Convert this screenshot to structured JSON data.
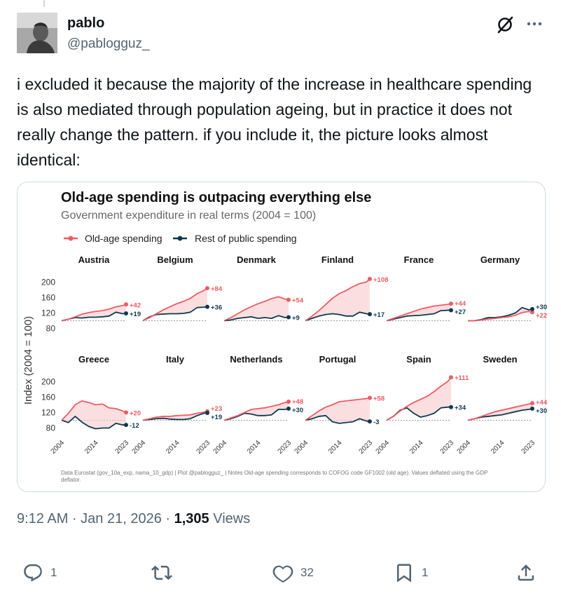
{
  "post": {
    "author_name": "pablo",
    "author_handle": "@pablogguz_",
    "text": "i excluded it because the majority of the increase in healthcare spending is also mediated through population ageing, but in practice it does not really change the pattern. if you include it, the picture looks almost identical:",
    "time": "9:12 AM",
    "date": "Jan 21, 2026",
    "views_count": "1,305",
    "views_label": "Views"
  },
  "actions": {
    "replies": "1",
    "reposts": "",
    "likes": "32",
    "bookmarks": "1"
  },
  "icons": [
    "reply-icon",
    "repost-icon",
    "like-icon",
    "bookmark-icon",
    "share-icon",
    "grok-icon",
    "more-icon"
  ],
  "chart_data": {
    "type": "line",
    "title": "Old-age spending is outpacing everything else",
    "subtitle": "Government expenditure in real terms (2004 = 100)",
    "legend": [
      {
        "name": "Old-age spending",
        "color": "#f05a63"
      },
      {
        "name": "Rest of public spending",
        "color": "#0e3a4f"
      }
    ],
    "ylabel": "Index (2004 = 100)",
    "yticks": [
      80,
      120,
      160,
      200
    ],
    "ylim": [
      70,
      215
    ],
    "x_ticks": [
      "2004",
      "2014",
      "2023"
    ],
    "xlim": [
      2004,
      2023
    ],
    "note": "Data Eurostat (gov_10a_exp, nama_10_gdp) | Plot @pablogguz_ | Notes Old-age spending corresponds to COFOG code GF1002 (old age). Values deflated using the GDP deflator.",
    "panels": [
      {
        "country": "Austria",
        "old_label": "+42",
        "rest_label": "+19",
        "old": [
          [
            2004,
            100
          ],
          [
            2006,
            104
          ],
          [
            2008,
            110
          ],
          [
            2010,
            117
          ],
          [
            2012,
            121
          ],
          [
            2014,
            124
          ],
          [
            2016,
            126
          ],
          [
            2018,
            130
          ],
          [
            2020,
            136
          ],
          [
            2022,
            139
          ],
          [
            2023,
            142
          ]
        ],
        "rest": [
          [
            2004,
            100
          ],
          [
            2006,
            104
          ],
          [
            2008,
            108
          ],
          [
            2010,
            107
          ],
          [
            2012,
            109
          ],
          [
            2014,
            109
          ],
          [
            2016,
            110
          ],
          [
            2018,
            112
          ],
          [
            2020,
            122
          ],
          [
            2022,
            118
          ],
          [
            2023,
            119
          ]
        ]
      },
      {
        "country": "Belgium",
        "old_label": "+84",
        "rest_label": "+36",
        "old": [
          [
            2004,
            100
          ],
          [
            2006,
            108
          ],
          [
            2008,
            118
          ],
          [
            2010,
            128
          ],
          [
            2012,
            136
          ],
          [
            2014,
            144
          ],
          [
            2016,
            150
          ],
          [
            2018,
            158
          ],
          [
            2020,
            170
          ],
          [
            2022,
            178
          ],
          [
            2023,
            184
          ]
        ],
        "rest": [
          [
            2004,
            100
          ],
          [
            2006,
            110
          ],
          [
            2008,
            116
          ],
          [
            2010,
            117
          ],
          [
            2012,
            118
          ],
          [
            2014,
            118
          ],
          [
            2016,
            119
          ],
          [
            2018,
            122
          ],
          [
            2020,
            134
          ],
          [
            2022,
            135
          ],
          [
            2023,
            136
          ]
        ]
      },
      {
        "country": "Denmark",
        "old_label": "+54",
        "rest_label": "+9",
        "old": [
          [
            2004,
            100
          ],
          [
            2006,
            108
          ],
          [
            2008,
            118
          ],
          [
            2010,
            128
          ],
          [
            2012,
            136
          ],
          [
            2014,
            144
          ],
          [
            2016,
            150
          ],
          [
            2018,
            157
          ],
          [
            2020,
            162
          ],
          [
            2022,
            156
          ],
          [
            2023,
            154
          ]
        ],
        "rest": [
          [
            2004,
            100
          ],
          [
            2006,
            102
          ],
          [
            2008,
            106
          ],
          [
            2010,
            108
          ],
          [
            2012,
            110
          ],
          [
            2014,
            106
          ],
          [
            2016,
            108
          ],
          [
            2018,
            106
          ],
          [
            2020,
            113
          ],
          [
            2022,
            108
          ],
          [
            2023,
            109
          ]
        ]
      },
      {
        "country": "Finland",
        "old_label": "+108",
        "rest_label": "+17",
        "old": [
          [
            2004,
            100
          ],
          [
            2006,
            112
          ],
          [
            2008,
            126
          ],
          [
            2010,
            142
          ],
          [
            2012,
            158
          ],
          [
            2014,
            170
          ],
          [
            2016,
            178
          ],
          [
            2018,
            188
          ],
          [
            2020,
            196
          ],
          [
            2022,
            200
          ],
          [
            2023,
            208
          ]
        ],
        "rest": [
          [
            2004,
            100
          ],
          [
            2006,
            106
          ],
          [
            2008,
            112
          ],
          [
            2010,
            116
          ],
          [
            2012,
            118
          ],
          [
            2014,
            116
          ],
          [
            2016,
            112
          ],
          [
            2018,
            112
          ],
          [
            2020,
            122
          ],
          [
            2022,
            118
          ],
          [
            2023,
            117
          ]
        ]
      },
      {
        "country": "France",
        "old_label": "+44",
        "rest_label": "+27",
        "old": [
          [
            2004,
            100
          ],
          [
            2006,
            106
          ],
          [
            2008,
            112
          ],
          [
            2010,
            118
          ],
          [
            2012,
            124
          ],
          [
            2014,
            130
          ],
          [
            2016,
            134
          ],
          [
            2018,
            138
          ],
          [
            2020,
            140
          ],
          [
            2022,
            142
          ],
          [
            2023,
            144
          ]
        ],
        "rest": [
          [
            2004,
            100
          ],
          [
            2006,
            104
          ],
          [
            2008,
            108
          ],
          [
            2010,
            112
          ],
          [
            2012,
            113
          ],
          [
            2014,
            114
          ],
          [
            2016,
            116
          ],
          [
            2018,
            118
          ],
          [
            2020,
            126
          ],
          [
            2022,
            127
          ],
          [
            2023,
            127
          ]
        ]
      },
      {
        "country": "Germany",
        "old_label": "+22",
        "rest_label": "+30",
        "old": [
          [
            2004,
            100
          ],
          [
            2006,
            100
          ],
          [
            2008,
            102
          ],
          [
            2010,
            104
          ],
          [
            2012,
            106
          ],
          [
            2014,
            108
          ],
          [
            2016,
            110
          ],
          [
            2018,
            114
          ],
          [
            2020,
            121
          ],
          [
            2022,
            124
          ],
          [
            2023,
            122
          ]
        ],
        "rest": [
          [
            2004,
            100
          ],
          [
            2006,
            100
          ],
          [
            2008,
            103
          ],
          [
            2010,
            108
          ],
          [
            2012,
            108
          ],
          [
            2014,
            110
          ],
          [
            2016,
            114
          ],
          [
            2018,
            120
          ],
          [
            2020,
            134
          ],
          [
            2022,
            128
          ],
          [
            2023,
            130
          ]
        ]
      },
      {
        "country": "Greece",
        "old_label": "+20",
        "rest_label": "-12",
        "old": [
          [
            2004,
            100
          ],
          [
            2006,
            118
          ],
          [
            2008,
            140
          ],
          [
            2010,
            150
          ],
          [
            2012,
            146
          ],
          [
            2014,
            140
          ],
          [
            2016,
            142
          ],
          [
            2018,
            132
          ],
          [
            2020,
            130
          ],
          [
            2022,
            124
          ],
          [
            2023,
            120
          ]
        ],
        "rest": [
          [
            2004,
            100
          ],
          [
            2006,
            94
          ],
          [
            2008,
            110
          ],
          [
            2010,
            95
          ],
          [
            2012,
            84
          ],
          [
            2014,
            78
          ],
          [
            2016,
            80
          ],
          [
            2018,
            80
          ],
          [
            2020,
            92
          ],
          [
            2022,
            88
          ],
          [
            2023,
            88
          ]
        ]
      },
      {
        "country": "Italy",
        "old_label": "+23",
        "rest_label": "+19",
        "old": [
          [
            2004,
            100
          ],
          [
            2006,
            104
          ],
          [
            2008,
            108
          ],
          [
            2010,
            110
          ],
          [
            2012,
            110
          ],
          [
            2014,
            112
          ],
          [
            2016,
            113
          ],
          [
            2018,
            114
          ],
          [
            2020,
            118
          ],
          [
            2022,
            121
          ],
          [
            2023,
            123
          ]
        ],
        "rest": [
          [
            2004,
            100
          ],
          [
            2006,
            102
          ],
          [
            2008,
            104
          ],
          [
            2010,
            105
          ],
          [
            2012,
            103
          ],
          [
            2014,
            102
          ],
          [
            2016,
            102
          ],
          [
            2018,
            104
          ],
          [
            2020,
            112
          ],
          [
            2022,
            118
          ],
          [
            2023,
            119
          ]
        ]
      },
      {
        "country": "Netherlands",
        "old_label": "+48",
        "rest_label": "+30",
        "old": [
          [
            2004,
            100
          ],
          [
            2006,
            106
          ],
          [
            2008,
            112
          ],
          [
            2010,
            120
          ],
          [
            2012,
            128
          ],
          [
            2014,
            130
          ],
          [
            2016,
            132
          ],
          [
            2018,
            136
          ],
          [
            2020,
            140
          ],
          [
            2022,
            146
          ],
          [
            2023,
            148
          ]
        ],
        "rest": [
          [
            2004,
            100
          ],
          [
            2006,
            104
          ],
          [
            2008,
            110
          ],
          [
            2010,
            118
          ],
          [
            2012,
            116
          ],
          [
            2014,
            112
          ],
          [
            2016,
            112
          ],
          [
            2018,
            114
          ],
          [
            2020,
            128
          ],
          [
            2022,
            128
          ],
          [
            2023,
            130
          ]
        ]
      },
      {
        "country": "Portugal",
        "old_label": "+58",
        "rest_label": "-3",
        "old": [
          [
            2004,
            100
          ],
          [
            2006,
            112
          ],
          [
            2008,
            124
          ],
          [
            2010,
            134
          ],
          [
            2012,
            140
          ],
          [
            2014,
            148
          ],
          [
            2016,
            150
          ],
          [
            2018,
            152
          ],
          [
            2020,
            154
          ],
          [
            2022,
            156
          ],
          [
            2023,
            158
          ]
        ],
        "rest": [
          [
            2004,
            100
          ],
          [
            2006,
            104
          ],
          [
            2008,
            110
          ],
          [
            2010,
            112
          ],
          [
            2012,
            96
          ],
          [
            2014,
            92
          ],
          [
            2016,
            94
          ],
          [
            2018,
            96
          ],
          [
            2020,
            104
          ],
          [
            2022,
            98
          ],
          [
            2023,
            97
          ]
        ]
      },
      {
        "country": "Spain",
        "old_label": "+111",
        "rest_label": "+34",
        "old": [
          [
            2004,
            100
          ],
          [
            2006,
            110
          ],
          [
            2008,
            124
          ],
          [
            2010,
            136
          ],
          [
            2012,
            146
          ],
          [
            2014,
            154
          ],
          [
            2016,
            162
          ],
          [
            2018,
            174
          ],
          [
            2020,
            188
          ],
          [
            2022,
            200
          ],
          [
            2023,
            211
          ]
        ],
        "rest": [
          [
            2004,
            100
          ],
          [
            2006,
            110
          ],
          [
            2008,
            126
          ],
          [
            2010,
            132
          ],
          [
            2012,
            118
          ],
          [
            2014,
            108
          ],
          [
            2016,
            112
          ],
          [
            2018,
            118
          ],
          [
            2020,
            132
          ],
          [
            2022,
            134
          ],
          [
            2023,
            134
          ]
        ]
      },
      {
        "country": "Sweden",
        "old_label": "+44",
        "rest_label": "+30",
        "old": [
          [
            2004,
            100
          ],
          [
            2006,
            104
          ],
          [
            2008,
            110
          ],
          [
            2010,
            116
          ],
          [
            2012,
            122
          ],
          [
            2014,
            126
          ],
          [
            2016,
            130
          ],
          [
            2018,
            134
          ],
          [
            2020,
            138
          ],
          [
            2022,
            142
          ],
          [
            2023,
            144
          ]
        ],
        "rest": [
          [
            2004,
            100
          ],
          [
            2006,
            104
          ],
          [
            2008,
            108
          ],
          [
            2010,
            110
          ],
          [
            2012,
            112
          ],
          [
            2014,
            114
          ],
          [
            2016,
            118
          ],
          [
            2018,
            122
          ],
          [
            2020,
            126
          ],
          [
            2022,
            128
          ],
          [
            2023,
            130
          ]
        ]
      }
    ]
  }
}
